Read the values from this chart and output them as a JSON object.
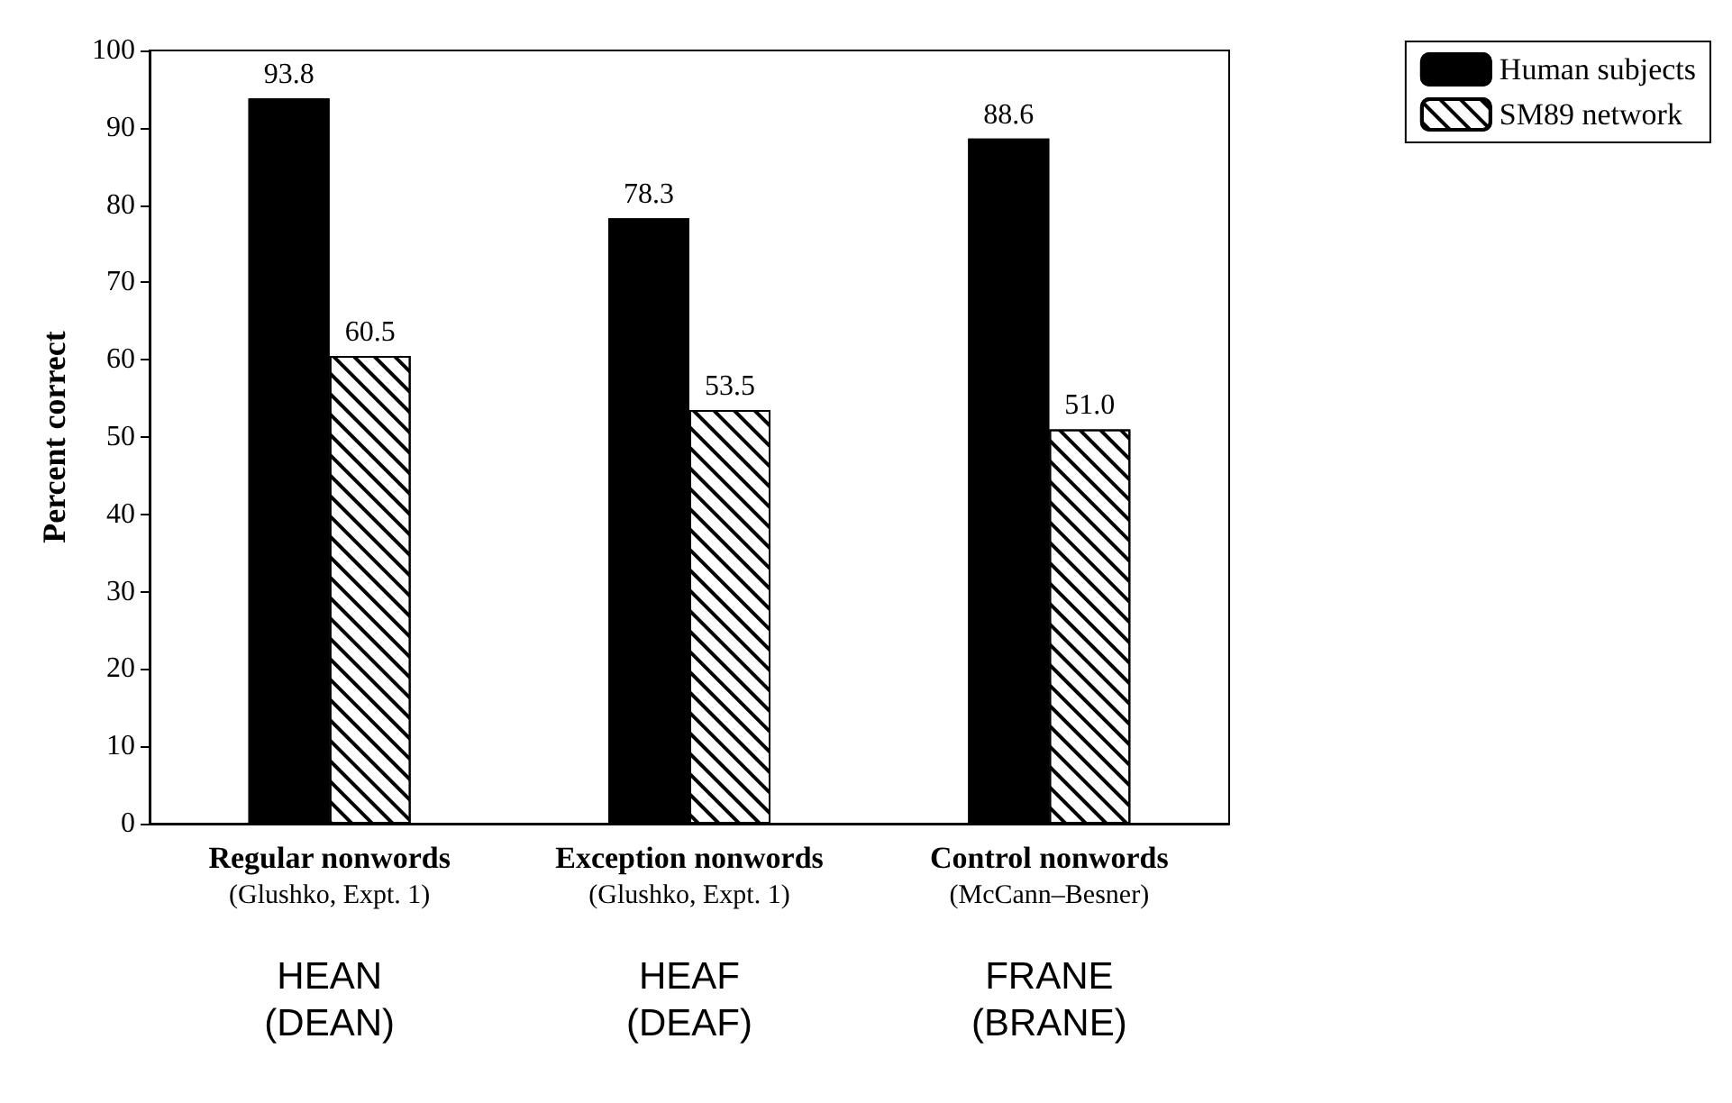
{
  "chart_data": {
    "type": "bar",
    "ylabel": "Percent correct",
    "categories": [
      "Regular nonwords\n(Glushko, Expt. 1)\n\nHEAN\n(DEAN)",
      "Exception nonwords\n(Glushko, Expt. 1)\n\nHEAF\n(DEAF)",
      "Control nonwords\n(McCann–Besner)\n\nFRANE\n(BRANE)"
    ],
    "series": [
      {
        "name": "Human subjects",
        "color": "#000000",
        "values": [
          93.8,
          78.3,
          88.6
        ],
        "value_labels": [
          "93.8",
          "78.3",
          "88.6"
        ]
      },
      {
        "name": "SM89 network",
        "color": "#ffffff",
        "values": [
          60.5,
          53.5,
          51.0
        ],
        "value_labels": [
          "60.5",
          "53.5",
          "51.0"
        ]
      }
    ],
    "ylim": [
      0,
      100
    ],
    "yticks": [
      0,
      10,
      20,
      30,
      40,
      50,
      60,
      70,
      80,
      90,
      100
    ],
    "grid": false,
    "legend": "top right"
  }
}
